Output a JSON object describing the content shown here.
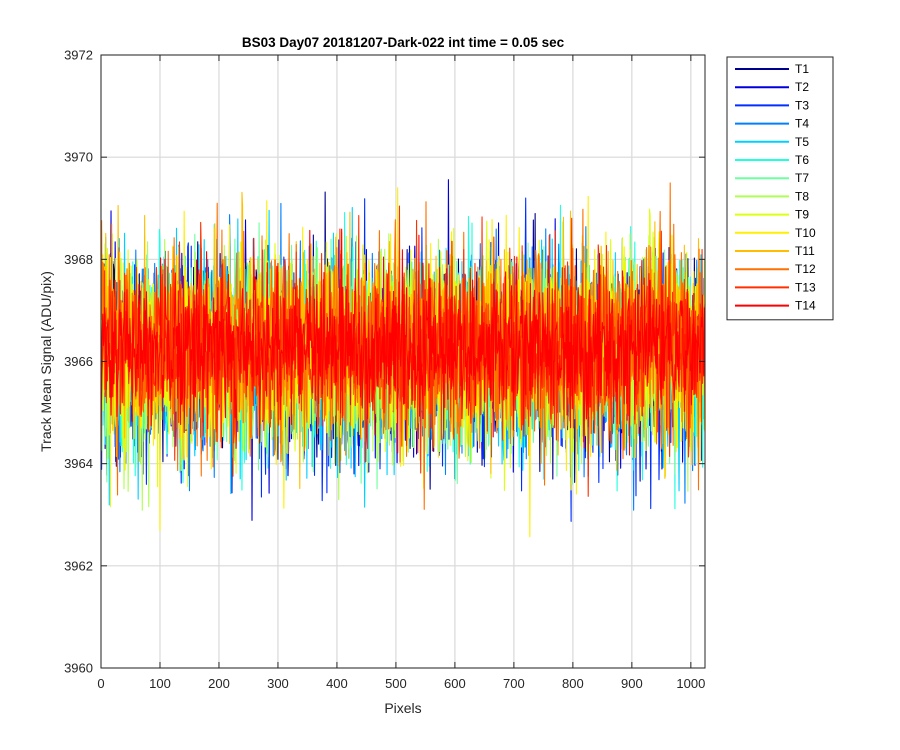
{
  "chart_data": {
    "type": "line",
    "title": "BS03 Day07 20181207-Dark-022 int time = 0.05 sec",
    "xlabel": "Pixels",
    "ylabel": "Track Mean Signal (ADU/pix)",
    "xlim": [
      0,
      1024
    ],
    "ylim": [
      3960,
      3972
    ],
    "xticks": [
      0,
      100,
      200,
      300,
      400,
      500,
      600,
      700,
      800,
      900,
      1000
    ],
    "yticks": [
      3960,
      3962,
      3964,
      3966,
      3968,
      3970,
      3972
    ],
    "grid": true,
    "legend_position": "outside-top-right",
    "noise_seed": 42,
    "series": [
      {
        "name": "T1",
        "color": "#00008f",
        "mean": 3966.0,
        "std": 0.95
      },
      {
        "name": "T2",
        "color": "#0000df",
        "mean": 3966.0,
        "std": 0.95
      },
      {
        "name": "T3",
        "color": "#0030ff",
        "mean": 3966.1,
        "std": 0.95
      },
      {
        "name": "T4",
        "color": "#0080ff",
        "mean": 3966.1,
        "std": 0.95
      },
      {
        "name": "T5",
        "color": "#00cfff",
        "mean": 3966.1,
        "std": 0.95
      },
      {
        "name": "T6",
        "color": "#20ffdf",
        "mean": 3966.1,
        "std": 0.95
      },
      {
        "name": "T7",
        "color": "#70ffa0",
        "mean": 3966.1,
        "std": 0.95
      },
      {
        "name": "T8",
        "color": "#afff50",
        "mean": 3966.2,
        "std": 0.95
      },
      {
        "name": "T9",
        "color": "#dfff10",
        "mean": 3966.2,
        "std": 0.95
      },
      {
        "name": "T10",
        "color": "#ffef00",
        "mean": 3966.2,
        "std": 0.95
      },
      {
        "name": "T11",
        "color": "#ffbf00",
        "mean": 3966.3,
        "std": 0.95
      },
      {
        "name": "T12",
        "color": "#ff7000",
        "mean": 3966.3,
        "std": 0.95
      },
      {
        "name": "T13",
        "color": "#ff3000",
        "mean": 3966.3,
        "std": 0.85
      },
      {
        "name": "T14",
        "color": "#ff0000",
        "mean": 3966.3,
        "std": 0.75
      }
    ]
  }
}
